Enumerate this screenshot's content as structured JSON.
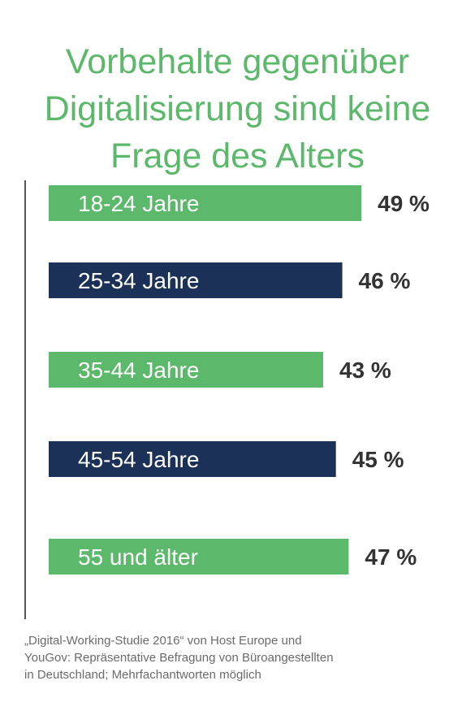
{
  "title_lines": [
    "Vorbehalte gegenüber",
    "Digitalisierung sind keine",
    "Frage des Alters"
  ],
  "source_lines": [
    "„Digital-Working-Studie 2016“ von Host Europe und",
    "YouGov: Repräsentative Befragung von Büroangestellten",
    "in Deutschland; Mehrfachantworten möglich"
  ],
  "colors": {
    "green": "#5cb86a",
    "navy": "#1c3158",
    "title": "#5cb86a",
    "value": "#333333"
  },
  "chart_data": {
    "type": "bar",
    "orientation": "horizontal",
    "categories": [
      "18-24 Jahre",
      "25-34 Jahre",
      "35-44 Jahre",
      "45-54 Jahre",
      "55 und älter"
    ],
    "values": [
      49,
      46,
      43,
      45,
      47
    ],
    "value_labels": [
      "49 %",
      "46 %",
      "43 %",
      "45 %",
      "47 %"
    ],
    "bar_colors": [
      "#5cb86a",
      "#1c3158",
      "#5cb86a",
      "#1c3158",
      "#5cb86a"
    ],
    "title": "Vorbehalte gegenüber Digitalisierung sind keine Frage des Alters",
    "xlabel": "",
    "ylabel": "",
    "unit": "%",
    "grid": false,
    "legend": "none"
  }
}
